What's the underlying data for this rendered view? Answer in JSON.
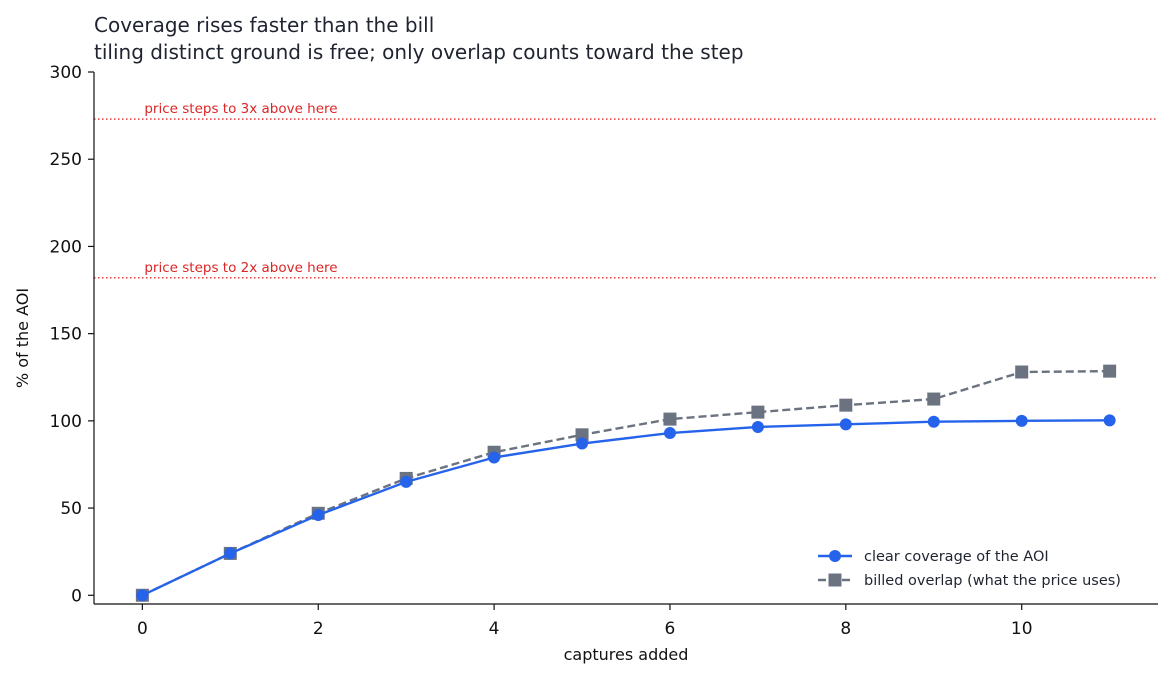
{
  "chart_data": {
    "type": "line",
    "title": "Coverage rises faster than the bill",
    "subtitle": "tiling distinct ground is free; only overlap counts toward the step",
    "xlabel": "captures added",
    "ylabel": "% of the AOI",
    "xlim": [
      -0.55,
      11.55
    ],
    "ylim": [
      -5,
      300
    ],
    "xticks": [
      0,
      2,
      4,
      6,
      8,
      10
    ],
    "yticks": [
      0,
      50,
      100,
      150,
      200,
      250,
      300
    ],
    "grid": false,
    "legend_position": "bottom-right",
    "x": [
      0,
      1,
      2,
      3,
      4,
      5,
      6,
      7,
      8,
      9,
      10,
      11
    ],
    "series": [
      {
        "name": "clear coverage of the AOI",
        "values": [
          0,
          24,
          46,
          65,
          79,
          87,
          93,
          96.5,
          98,
          99.5,
          100,
          100.3
        ],
        "color": "#2563eb",
        "marker": "circle",
        "style": "solid"
      },
      {
        "name": "billed overlap (what the price uses)",
        "values": [
          0,
          24,
          47,
          67,
          82,
          92,
          101,
          105,
          109,
          112.5,
          128,
          128.5
        ],
        "color": "#6b7280",
        "marker": "square",
        "style": "dashed"
      }
    ],
    "reference_lines": [
      {
        "y": 182,
        "label": "price steps to 2x above here",
        "color": "#dc2626"
      },
      {
        "y": 273,
        "label": "price steps to 3x above here",
        "color": "#dc2626"
      }
    ]
  }
}
